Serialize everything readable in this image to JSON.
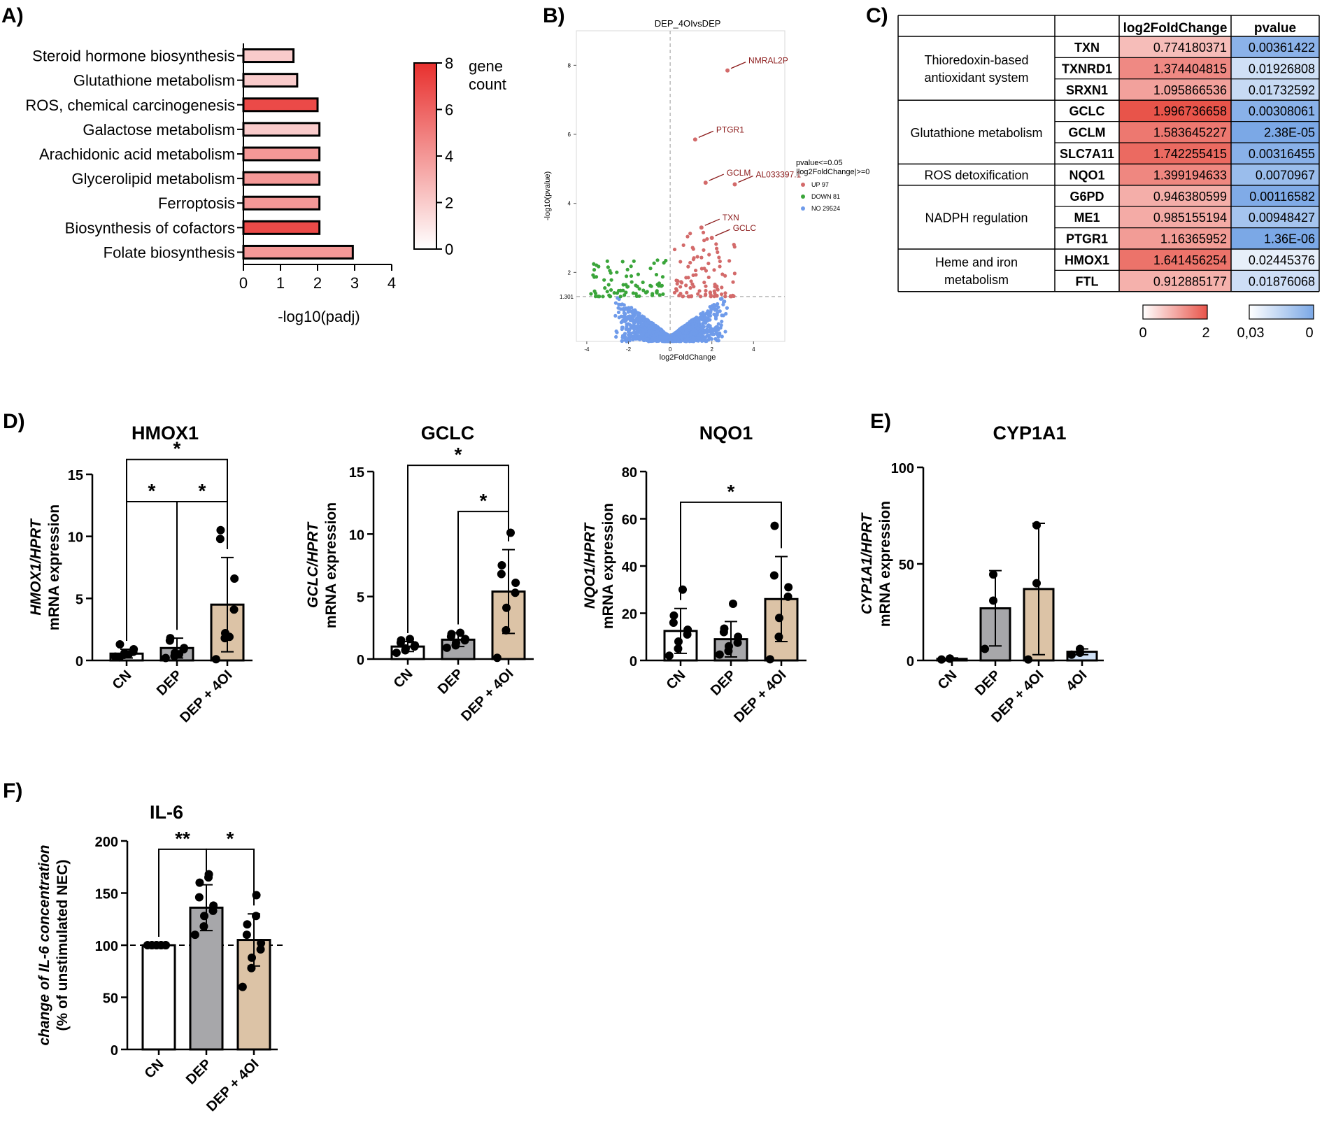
{
  "chart_data": [
    {
      "id": "A",
      "panel_label": "A)",
      "type": "bar",
      "orientation": "horizontal",
      "categories": [
        "Steroid hormone biosynthesis",
        "Glutathione metabolism",
        "ROS, chemical carcinogenesis",
        "Galactose metabolism",
        "Arachidonic acid metabolism",
        "Glycerolipid metabolism",
        "Ferroptosis",
        "Biosynthesis of cofactors",
        "Folate biosynthesis"
      ],
      "values": [
        1.35,
        1.45,
        2.0,
        2.05,
        2.05,
        2.05,
        2.05,
        2.05,
        2.95
      ],
      "gene_count": [
        2,
        2,
        7,
        2,
        4,
        4,
        4,
        7,
        4
      ],
      "xlabel": "-log10(padj)",
      "xticks": [
        "0",
        "1",
        "2",
        "3",
        "4"
      ],
      "xlim": [
        0,
        4
      ],
      "colorbar": {
        "title_line1": "gene",
        "title_line2": "count",
        "ticks": [
          "0",
          "2",
          "4",
          "6",
          "8"
        ],
        "range": [
          0,
          8
        ],
        "low_color": "#ffffff",
        "high_color": "#e8302e"
      }
    },
    {
      "id": "B",
      "panel_label": "B)",
      "type": "scatter",
      "title": "DEP_4OIvsDEP",
      "xlabel": "log2FoldChange",
      "ylabel": "-log10(pvalue)",
      "xticks": [
        "-4",
        "-2",
        "0",
        "2",
        "4"
      ],
      "xlim": [
        -4.5,
        5.5
      ],
      "ylim": [
        0,
        9
      ],
      "threshold_label": "1.301",
      "threshold_y": 1.301,
      "labeled_genes": [
        {
          "name": "NMRAL2P",
          "x": 2.75,
          "y": 7.85
        },
        {
          "name": "PTGR1",
          "x": 1.2,
          "y": 5.85
        },
        {
          "name": "GCLM",
          "x": 1.7,
          "y": 4.6
        },
        {
          "name": "AL033397.1",
          "x": 3.1,
          "y": 4.55
        },
        {
          "name": "TXN",
          "x": 1.5,
          "y": 3.3
        },
        {
          "name": "GCLC",
          "x": 2.0,
          "y": 3.0
        }
      ],
      "legend": {
        "title_line1": "pvalue<=0.05",
        "title_line2": "|log2FoldChange|>=0",
        "entries": [
          {
            "label": "UP 97",
            "color": "#d36a6a"
          },
          {
            "label": "DOWN 81",
            "color": "#3aa53a"
          },
          {
            "label": "NO 29524",
            "color": "#6f9bea"
          }
        ]
      }
    },
    {
      "id": "C",
      "panel_label": "C)",
      "type": "table",
      "columns": [
        "log2FoldChange",
        "pvalue"
      ],
      "groups": [
        {
          "label_lines": [
            "Thioredoxin-based",
            "antioxidant system"
          ],
          "rows": [
            [
              "TXN",
              "0.774180371",
              "0.00361422"
            ],
            [
              "TXNRD1",
              "1.374404815",
              "0.01926808"
            ],
            [
              "SRXN1",
              "1.095866536",
              "0.01732592"
            ]
          ]
        },
        {
          "label_lines": [
            "Glutathione metabolism"
          ],
          "rows": [
            [
              "GCLC",
              "1.996736658",
              "0.00308061"
            ],
            [
              "GCLM",
              "1.583645227",
              "2.38E-05"
            ],
            [
              "SLC7A11",
              "1.742255415",
              "0.00316455"
            ]
          ]
        },
        {
          "label_lines": [
            "ROS detoxification"
          ],
          "rows": [
            [
              "NQO1",
              "1.399194633",
              "0.0070967"
            ]
          ]
        },
        {
          "label_lines": [
            "NADPH regulation"
          ],
          "rows": [
            [
              "G6PD",
              "0.946380599",
              "0.00116582"
            ],
            [
              "ME1",
              "0.985155194",
              "0.00948427"
            ],
            [
              "PTGR1",
              "1.16365952",
              "1.36E-06"
            ]
          ]
        },
        {
          "label_lines": [
            "Heme and iron",
            "metabolism"
          ],
          "rows": [
            [
              "HMOX1",
              "1.641456254",
              "0.02445376"
            ],
            [
              "FTL",
              "0.912885177",
              "0.01876068"
            ]
          ]
        }
      ],
      "scale_fc": {
        "ticks": [
          "0",
          "2"
        ],
        "range": [
          0,
          2
        ],
        "low_color": "#ffffff",
        "high_color": "#e8544a"
      },
      "scale_p": {
        "ticks": [
          "0,03",
          "0"
        ],
        "range": [
          0.03,
          0
        ],
        "low_color": "#ffffff",
        "high_color": "#7ba8e6"
      }
    },
    {
      "id": "D1",
      "panel_label": "D)",
      "type": "bar",
      "title": "HMOX1",
      "ylabel_line1": "HMOX1/HPRT",
      "ylabel_line2": "mRNA expression",
      "categories": [
        "CN",
        "DEP",
        "DEP + 4OI"
      ],
      "values": [
        0.55,
        1.0,
        4.5
      ],
      "errors": [
        0.35,
        0.8,
        3.8
      ],
      "ylim": [
        0,
        15
      ],
      "yticks": [
        0,
        5,
        10,
        15
      ],
      "points": [
        [
          0.3,
          0.45,
          0.6,
          0.7,
          0.9,
          0.25,
          1.3,
          0.5
        ],
        [
          0.2,
          0.35,
          0.6,
          0.9,
          1.0,
          1.6,
          1.8,
          0.5
        ],
        [
          0.1,
          1.8,
          2.2,
          4.1,
          6.6,
          9.8,
          10.5,
          1.9
        ]
      ],
      "significance": [
        {
          "from": 0,
          "to": 2,
          "label": "*",
          "y": 16.2
        },
        {
          "from": 0,
          "to": 1,
          "label": "*",
          "y": 12.8
        },
        {
          "from": 1,
          "to": 2,
          "label": "*",
          "y": 12.8
        }
      ]
    },
    {
      "id": "D2",
      "type": "bar",
      "title": "GCLC",
      "ylabel_line1": "GCLC/HPRT",
      "ylabel_line2": "mRNA expression",
      "categories": [
        "CN",
        "DEP",
        "DEP + 4OI"
      ],
      "values": [
        1.0,
        1.55,
        5.4
      ],
      "errors": [
        0.4,
        0.55,
        3.35
      ],
      "ylim": [
        0,
        15
      ],
      "yticks": [
        0,
        5,
        10,
        15
      ],
      "points": [
        [
          0.5,
          0.7,
          0.85,
          1.0,
          1.1,
          1.3,
          1.5,
          1.6
        ],
        [
          0.9,
          1.1,
          1.3,
          1.5,
          1.6,
          1.8,
          2.0,
          2.1
        ],
        [
          0.1,
          2.3,
          4.1,
          5.3,
          6.1,
          6.8,
          7.5,
          10.1
        ]
      ],
      "significance": [
        {
          "from": 0,
          "to": 2,
          "label": "*",
          "y": 15.5
        },
        {
          "from": 1,
          "to": 2,
          "label": "*",
          "y": 11.8
        }
      ]
    },
    {
      "id": "D3",
      "type": "bar",
      "title": "NQO1",
      "ylabel_line1": "NQO1/HPRT",
      "ylabel_line2": "mRNA expression",
      "categories": [
        "CN",
        "DEP",
        "DEP + 4OI"
      ],
      "values": [
        12.5,
        9.0,
        26.0
      ],
      "errors": [
        9.5,
        7.5,
        18.0
      ],
      "ylim": [
        0,
        80
      ],
      "yticks": [
        0,
        20,
        40,
        60,
        80
      ],
      "points": [
        [
          2.0,
          5.0,
          8.0,
          11.0,
          13.0,
          16.0,
          19.0,
          30.0
        ],
        [
          2.5,
          4.0,
          6.0,
          7.5,
          10.0,
          12.0,
          13.5,
          24.0
        ],
        [
          0.5,
          10.0,
          18.0,
          27.0,
          31.0,
          36.0,
          57.0
        ]
      ],
      "significance": [
        {
          "from": 0,
          "to": 2,
          "label": "*",
          "y": 67.0
        }
      ]
    },
    {
      "id": "E",
      "panel_label": "E)",
      "type": "bar",
      "title": "CYP1A1",
      "ylabel_line1": "CYP1A1/HPRT",
      "ylabel_line2": "mRNA expression",
      "categories": [
        "CN",
        "DEP",
        "DEP + 4OI",
        "4OI"
      ],
      "values": [
        0.8,
        27.0,
        37.0,
        4.5
      ],
      "errors": [
        0.5,
        19.5,
        34.0,
        1.5
      ],
      "ylim": [
        0,
        100
      ],
      "yticks": [
        0,
        50,
        100
      ],
      "points": [
        [
          0.5,
          1.0,
          0.9
        ],
        [
          6.0,
          31.0,
          44.5
        ],
        [
          0.5,
          40.0,
          70.0
        ],
        [
          3.0,
          4.0,
          6.0
        ]
      ],
      "significance": []
    },
    {
      "id": "F",
      "panel_label": "F)",
      "type": "bar",
      "title": "IL-6",
      "ylabel_line1": "change of IL-6 concentration",
      "ylabel_line2": "(% of unstimulated NEC)",
      "categories": [
        "CN",
        "DEP",
        "DEP + 4OI"
      ],
      "values": [
        100,
        136,
        105
      ],
      "errors": [
        0,
        22,
        25
      ],
      "ylim": [
        0,
        200
      ],
      "yticks": [
        0,
        50,
        100,
        150,
        200
      ],
      "reference_line": 100,
      "points": [
        [
          100,
          100,
          100,
          100,
          100,
          100,
          100,
          100,
          100
        ],
        [
          110,
          118,
          128,
          133,
          138,
          146,
          160,
          165,
          168
        ],
        [
          60,
          78,
          88,
          96,
          102,
          110,
          120,
          128,
          148
        ]
      ],
      "significance": [
        {
          "from": 0,
          "to": 1,
          "label": "**",
          "y": 192
        },
        {
          "from": 1,
          "to": 2,
          "label": "*",
          "y": 192
        }
      ]
    }
  ]
}
